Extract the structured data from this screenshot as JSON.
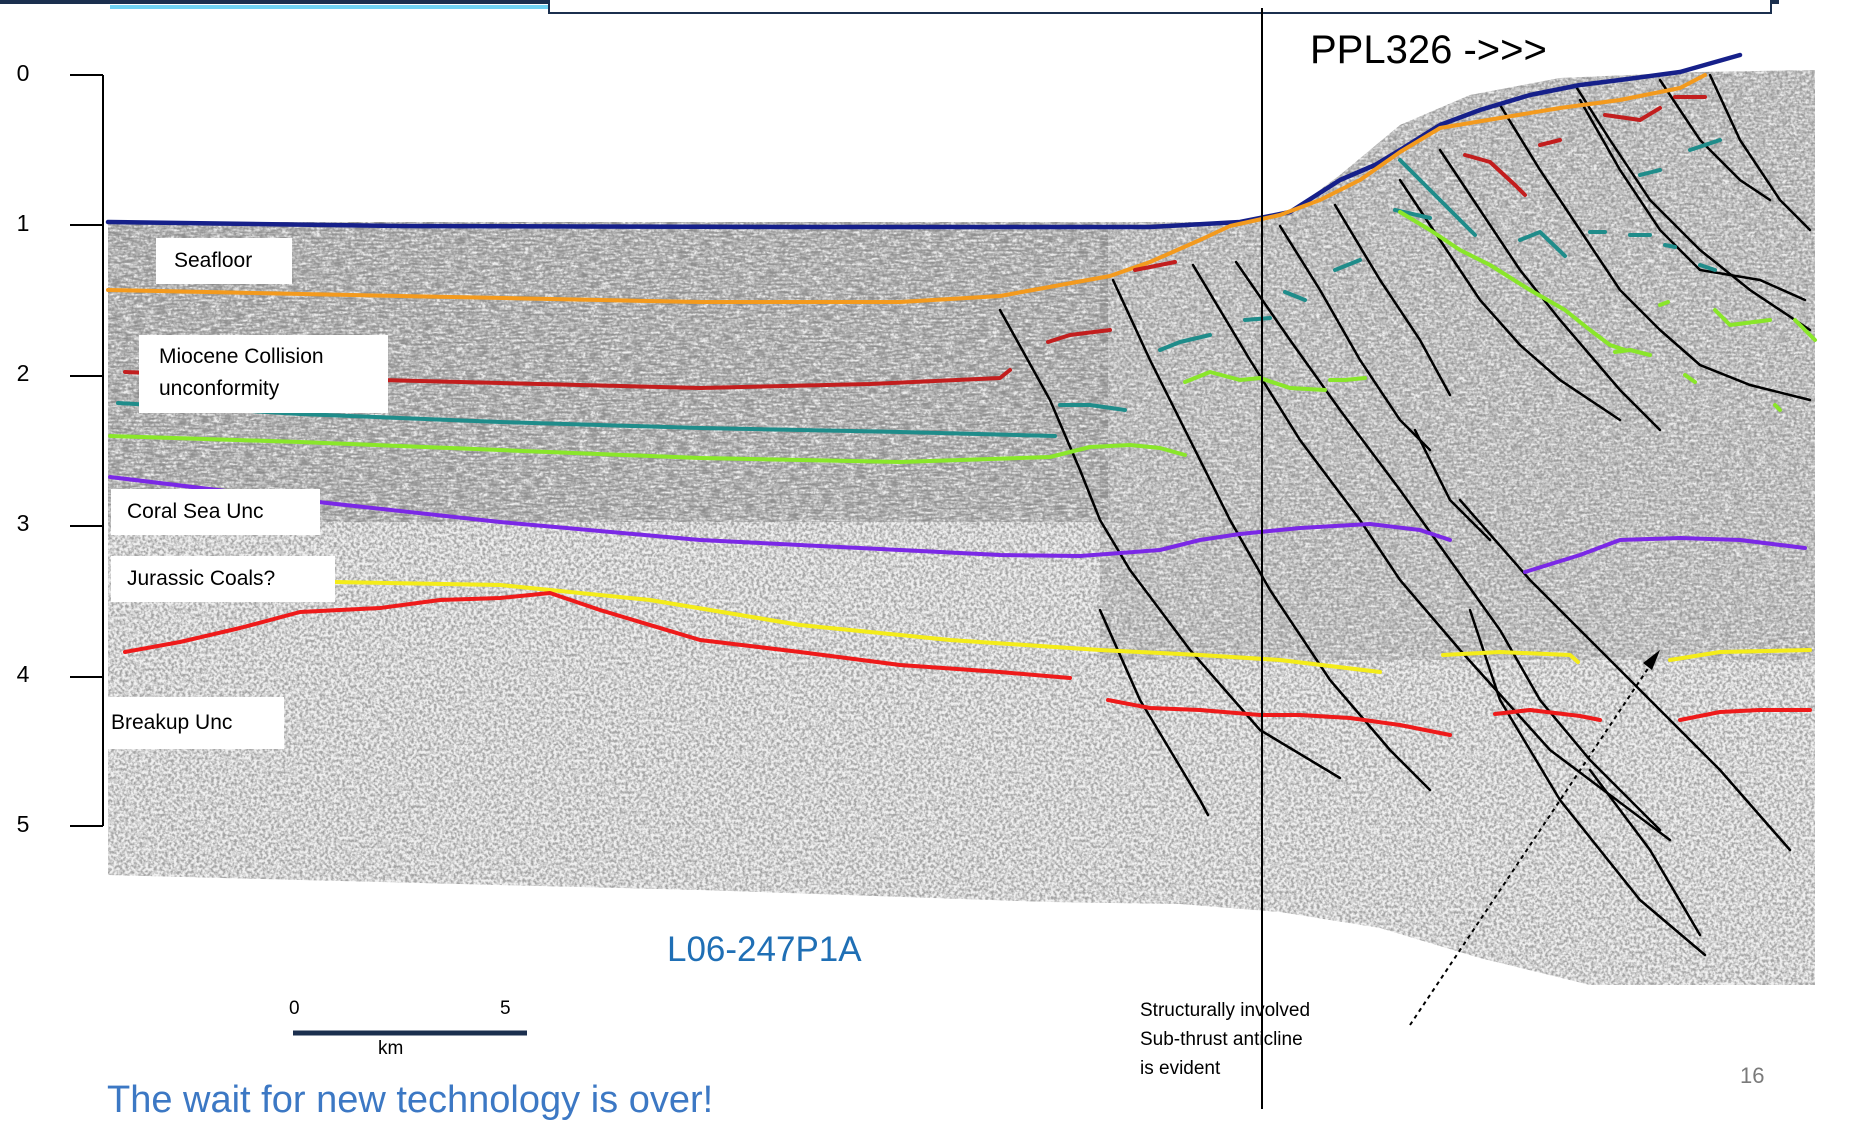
{
  "header": {
    "accent_dark": "#1b2f4e",
    "accent_cyan": "#6fd2f2"
  },
  "section_title": "PPL326 ->>>",
  "line_name": "L06-247P1A",
  "depth_axis": {
    "ticks": [
      "0",
      "1",
      "2",
      "3",
      "4",
      "5"
    ]
  },
  "horizon_labels": {
    "seafloor": "Seafloor",
    "miocene_1": "Miocene Collision",
    "miocene_2": "unconformity",
    "coral_sea": "Coral Sea Unc",
    "jurassic": "Jurassic Coals?",
    "breakup": "Breakup Unc"
  },
  "horizon_colors": {
    "seafloor": "#16208a",
    "orange": "#f39a1e",
    "dark_red": "#c21e1e",
    "teal": "#1f8c8a",
    "green": "#8ae62a",
    "purple": "#7a28e6",
    "yellow": "#f4ec1a",
    "red": "#ee1a1a",
    "fault": "#000000"
  },
  "scale_bar": {
    "start": "0",
    "end": "5",
    "unit": "km",
    "color": "#1b2f4e"
  },
  "annotation": {
    "line1": "Structurally  involved",
    "line2": "Sub-thrust  anticline",
    "line3": "is evident"
  },
  "page_number": "16",
  "footer_text": "The wait for new technology is over!"
}
